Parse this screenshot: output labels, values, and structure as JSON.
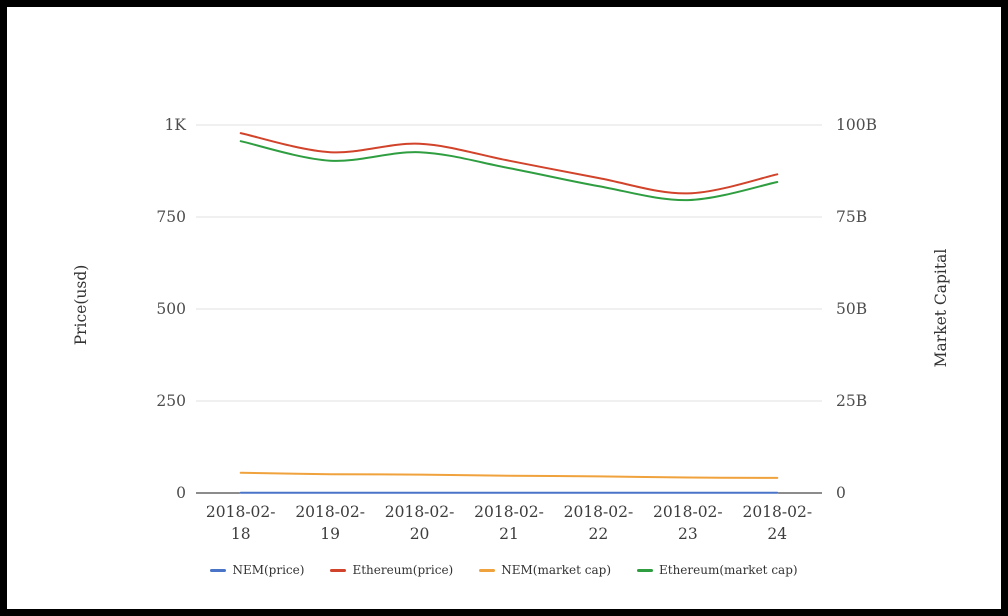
{
  "chart_data": {
    "type": "line",
    "title": "",
    "categories": [
      "2018-02-18",
      "2018-02-19",
      "2018-02-20",
      "2018-02-21",
      "2018-02-22",
      "2018-02-23",
      "2018-02-24"
    ],
    "x_tick_labels": [
      [
        "2018-02-",
        "18"
      ],
      [
        "2018-02-",
        "19"
      ],
      [
        "2018-02-",
        "20"
      ],
      [
        "2018-02-",
        "21"
      ],
      [
        "2018-02-",
        "22"
      ],
      [
        "2018-02-",
        "23"
      ],
      [
        "2018-02-",
        "24"
      ]
    ],
    "axes": {
      "left": {
        "label": "Price(usd)",
        "ticks": [
          "0",
          "250",
          "500",
          "750",
          "1K"
        ],
        "min": 0,
        "max": 1000
      },
      "right": {
        "label": "Market Capital",
        "ticks": [
          "0",
          "25B",
          "50B",
          "75B",
          "100B"
        ],
        "min": 0,
        "max": 100
      }
    },
    "grid": "horizontal-only",
    "legend_position": "bottom-center",
    "smooth": true,
    "colors": {
      "grid_line": "#e0e0e0",
      "axis_line": "#1a1a1a",
      "tick_text": "#4d4d4d"
    },
    "series": [
      {
        "name": "NEM(price)",
        "axis": "left",
        "color": "#4a74c8",
        "values": [
          0.63,
          0.55,
          0.56,
          0.52,
          0.48,
          0.42,
          0.45
        ]
      },
      {
        "name": "Ethereum(price)",
        "axis": "left",
        "color": "#d1432a",
        "values": [
          978,
          926,
          949,
          903,
          856,
          814,
          866
        ]
      },
      {
        "name": "NEM(market cap)",
        "axis": "right",
        "color": "#f0a23c",
        "values": [
          5.5,
          5.1,
          5.0,
          4.7,
          4.5,
          4.2,
          4.1
        ]
      },
      {
        "name": "Ethereum(market cap)",
        "axis": "right",
        "color": "#2f9e41",
        "values": [
          95.6,
          90.3,
          92.6,
          88.3,
          83.4,
          79.6,
          84.5
        ]
      }
    ]
  }
}
